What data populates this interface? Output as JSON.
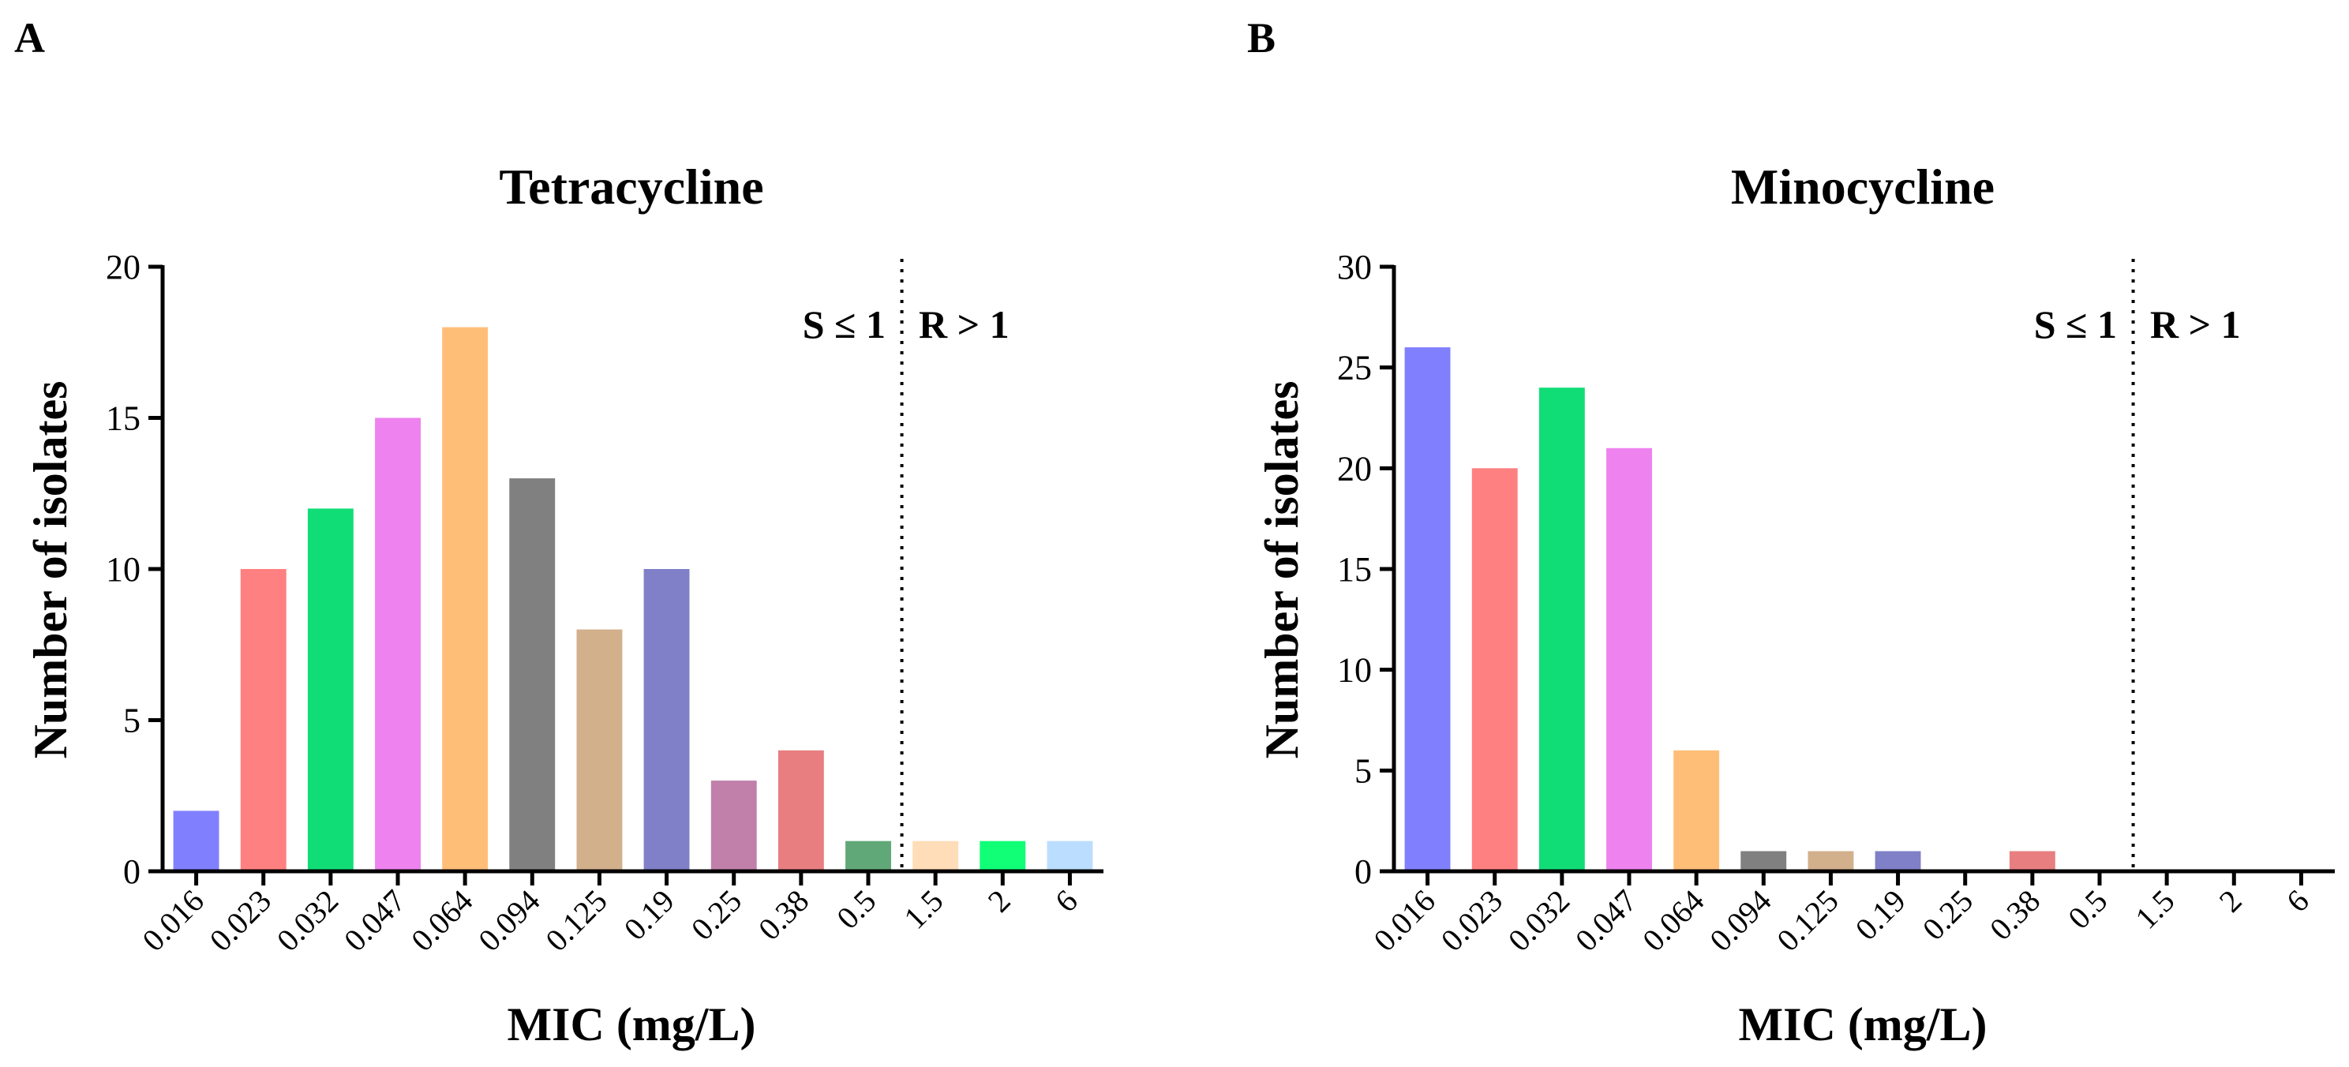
{
  "panels": [
    {
      "letter": "A",
      "chart_data": {
        "type": "bar",
        "title": "Tetracycline",
        "xlabel": "MIC (mg/L)",
        "ylabel": "Number of isolates",
        "categories": [
          "0.016",
          "0.023",
          "0.032",
          "0.047",
          "0.064",
          "0.094",
          "0.125",
          "0.19",
          "0.25",
          "0.38",
          "0.5",
          "1.5",
          "2",
          "6"
        ],
        "values": [
          2,
          10,
          12,
          15,
          18,
          13,
          8,
          10,
          3,
          4,
          1,
          1,
          1,
          1
        ],
        "colors": [
          "#8080FF",
          "#FF8080",
          "#11DD77",
          "#EE82EE",
          "#FFBE78",
          "#808080",
          "#D2B08C",
          "#8080C8",
          "#C080AA",
          "#E87E80",
          "#60A878",
          "#FFDDB8",
          "#11FF77",
          "#BBDDFF"
        ],
        "ylim": [
          0,
          20
        ],
        "yticks": [
          0,
          5,
          10,
          15,
          20
        ],
        "grid": false,
        "breakpoint": {
          "after_category": "0.5",
          "left_label": "S ≤ 1",
          "right_label": "R > 1"
        }
      }
    },
    {
      "letter": "B",
      "chart_data": {
        "type": "bar",
        "title": "Minocycline",
        "xlabel": "MIC (mg/L)",
        "ylabel": "Number of isolates",
        "categories": [
          "0.016",
          "0.023",
          "0.032",
          "0.047",
          "0.064",
          "0.094",
          "0.125",
          "0.19",
          "0.25",
          "0.38",
          "0.5",
          "1.5",
          "2",
          "6"
        ],
        "values": [
          26,
          20,
          24,
          21,
          6,
          1,
          1,
          1,
          0,
          1,
          0,
          0,
          0,
          0
        ],
        "colors": [
          "#8080FF",
          "#FF8080",
          "#11DD77",
          "#EE82EE",
          "#FFBE78",
          "#808080",
          "#D2B08C",
          "#8080C8",
          "#C080AA",
          "#E87E80",
          "#60A878",
          "#FFDDB8",
          "#11FF77",
          "#BBDDFF"
        ],
        "ylim": [
          0,
          30
        ],
        "yticks": [
          0,
          5,
          10,
          15,
          20,
          25,
          30
        ],
        "grid": false,
        "breakpoint": {
          "after_category": "0.5",
          "left_label": "S ≤ 1",
          "right_label": "R > 1"
        }
      }
    }
  ]
}
